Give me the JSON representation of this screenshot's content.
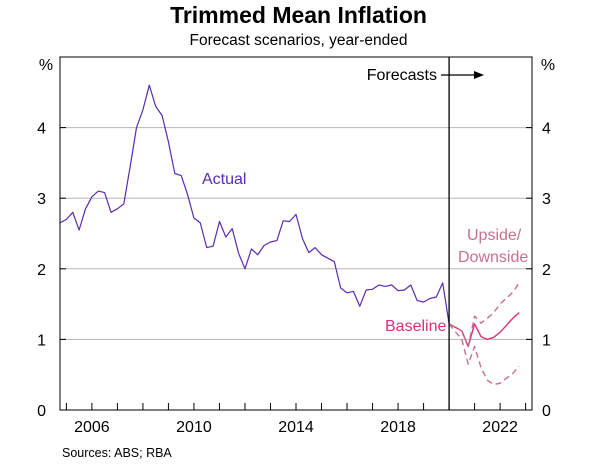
{
  "title": "Trimmed Mean Inflation",
  "subtitle": "Forecast scenarios, year-ended",
  "source": "Sources:   ABS; RBA",
  "colors": {
    "actual": "#5b2bb0",
    "baseline": "#d9307f",
    "scenario": "#c6708f",
    "grid": "#b5b5b5",
    "frame": "#000000"
  },
  "chart_data": {
    "type": "line",
    "title": "Trimmed Mean Inflation",
    "subtitle": "Forecast scenarios, year-ended",
    "ylabel_left": "%",
    "ylabel_right": "%",
    "ylim": [
      0,
      5
    ],
    "yticks": [
      0,
      1,
      2,
      3,
      4
    ],
    "xlim": [
      2004.75,
      2023.25
    ],
    "xticks": [
      2006,
      2010,
      2014,
      2018,
      2022
    ],
    "grid": true,
    "forecast_start": 2020.0,
    "annotations": {
      "forecasts": "Forecasts",
      "actual": "Actual",
      "baseline": "Baseline",
      "upside_downside_1": "Upside/",
      "upside_downside_2": "Downside"
    },
    "series": [
      {
        "name": "Actual",
        "x": [
          2004.75,
          2005.0,
          2005.25,
          2005.5,
          2005.75,
          2006.0,
          2006.25,
          2006.5,
          2006.75,
          2007.0,
          2007.25,
          2007.5,
          2007.75,
          2008.0,
          2008.25,
          2008.5,
          2008.75,
          2009.0,
          2009.25,
          2009.5,
          2009.75,
          2010.0,
          2010.25,
          2010.5,
          2010.75,
          2011.0,
          2011.25,
          2011.5,
          2011.75,
          2012.0,
          2012.25,
          2012.5,
          2012.75,
          2013.0,
          2013.25,
          2013.5,
          2013.75,
          2014.0,
          2014.25,
          2014.5,
          2014.75,
          2015.0,
          2015.25,
          2015.5,
          2015.75,
          2016.0,
          2016.25,
          2016.5,
          2016.75,
          2017.0,
          2017.25,
          2017.5,
          2017.75,
          2018.0,
          2018.25,
          2018.5,
          2018.75,
          2019.0,
          2019.25,
          2019.5,
          2019.75,
          2020.0
        ],
        "values": [
          2.65,
          2.7,
          2.8,
          2.55,
          2.85,
          3.02,
          3.1,
          3.08,
          2.8,
          2.85,
          2.92,
          3.45,
          4.0,
          4.25,
          4.6,
          4.3,
          4.17,
          3.8,
          3.35,
          3.32,
          3.05,
          2.72,
          2.65,
          2.3,
          2.32,
          2.67,
          2.45,
          2.57,
          2.22,
          2.0,
          2.28,
          2.2,
          2.33,
          2.38,
          2.4,
          2.68,
          2.67,
          2.77,
          2.43,
          2.23,
          2.3,
          2.2,
          2.15,
          2.1,
          1.73,
          1.66,
          1.68,
          1.47,
          1.7,
          1.71,
          1.77,
          1.75,
          1.77,
          1.69,
          1.7,
          1.77,
          1.55,
          1.53,
          1.58,
          1.6,
          1.8,
          1.22
        ]
      },
      {
        "name": "Baseline",
        "x": [
          2020.0,
          2020.5,
          2020.75,
          2021.0,
          2021.25,
          2021.5,
          2021.75,
          2022.0,
          2022.5,
          2022.75
        ],
        "values": [
          1.22,
          1.12,
          0.9,
          1.22,
          1.04,
          1.0,
          1.03,
          1.1,
          1.3,
          1.38
        ]
      },
      {
        "name": "Upside",
        "x": [
          2020.0,
          2020.5,
          2020.75,
          2021.0,
          2021.25,
          2021.5,
          2021.75,
          2022.0,
          2022.5,
          2022.75
        ],
        "values": [
          1.22,
          1.12,
          0.9,
          1.33,
          1.23,
          1.3,
          1.38,
          1.5,
          1.67,
          1.8
        ]
      },
      {
        "name": "Downside",
        "x": [
          2020.0,
          2020.5,
          2020.75,
          2021.0,
          2021.25,
          2021.5,
          2021.75,
          2022.0,
          2022.5,
          2022.75
        ],
        "values": [
          1.22,
          1.0,
          0.65,
          0.9,
          0.6,
          0.42,
          0.36,
          0.38,
          0.52,
          0.62
        ]
      }
    ]
  }
}
